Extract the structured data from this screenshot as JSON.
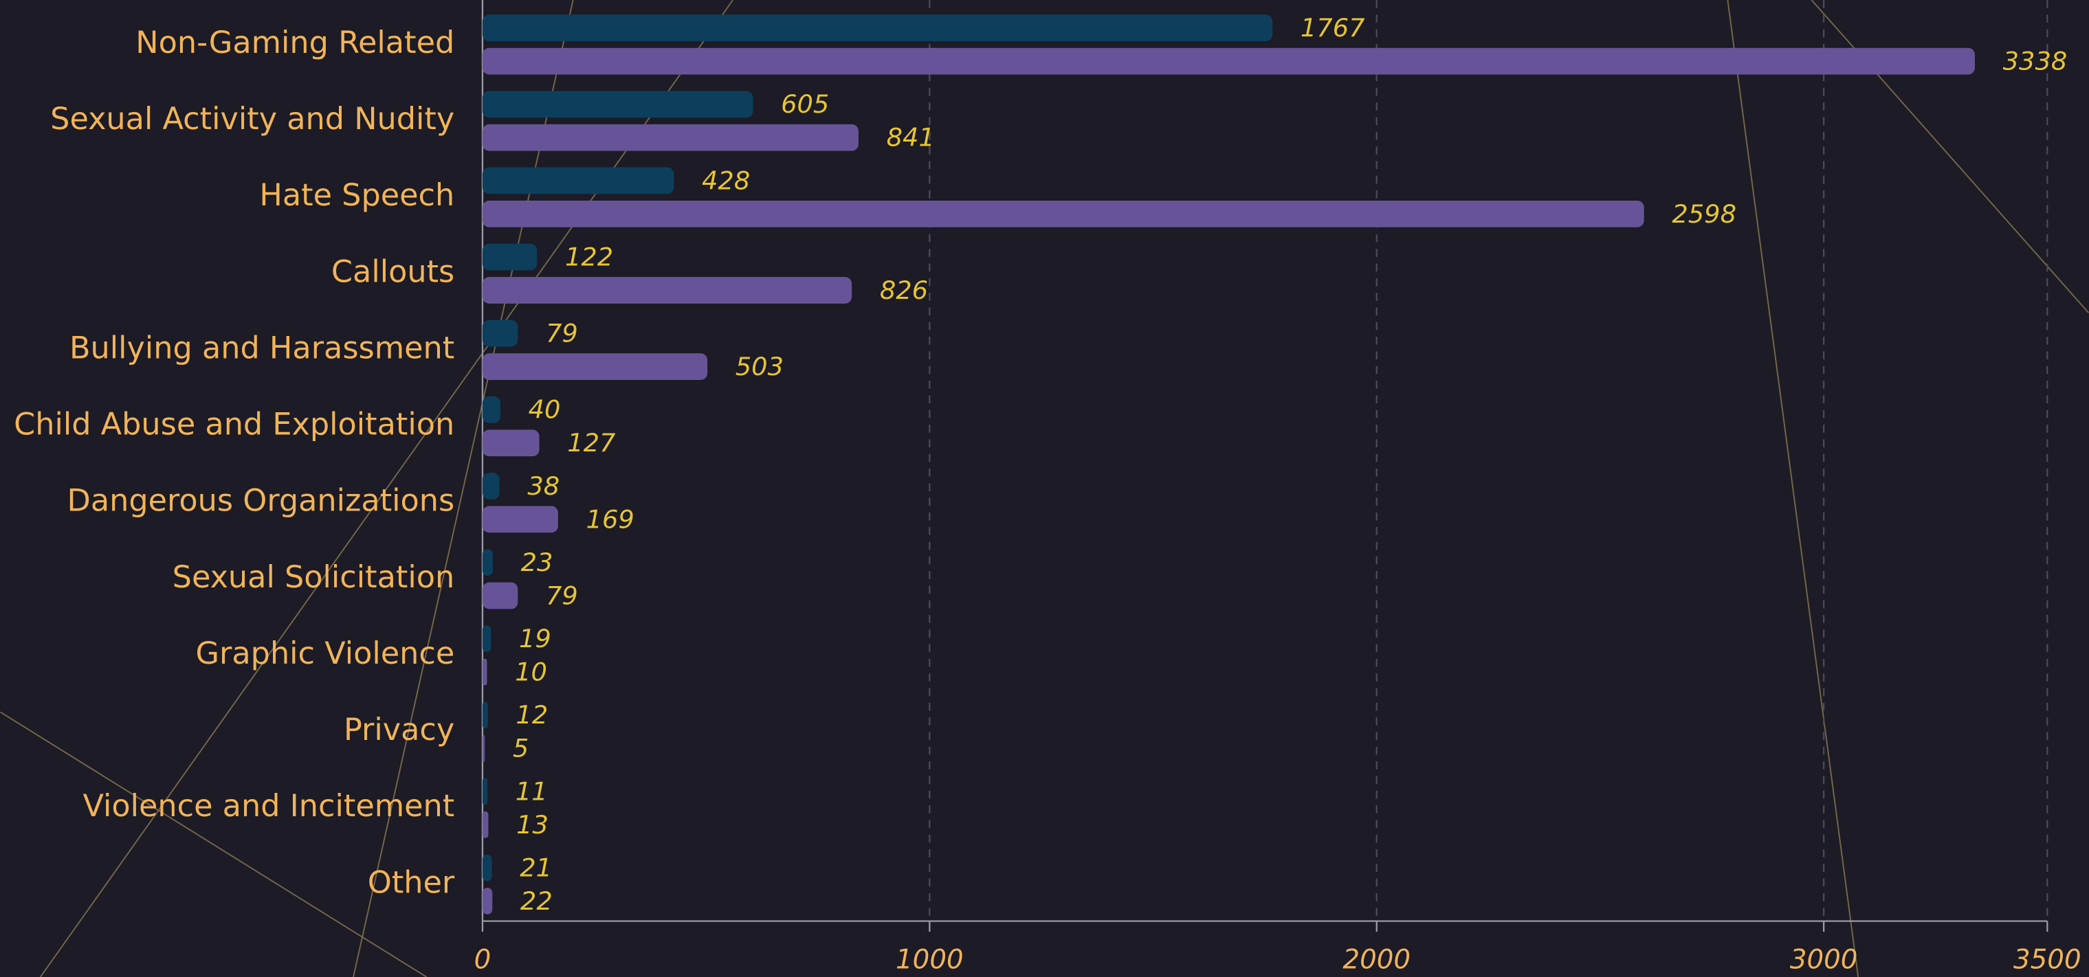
{
  "chart_data": {
    "type": "bar",
    "orientation": "horizontal",
    "categories": [
      "Non-Gaming Related",
      "Sexual Activity and Nudity",
      "Hate Speech",
      "Callouts",
      "Bullying and Harassment",
      "Child Abuse and Exploitation",
      "Dangerous Organizations",
      "Sexual Solicitation",
      "Graphic Violence",
      "Privacy",
      "Violence and Incitement",
      "Other"
    ],
    "series": [
      {
        "color": "#0d3f5c",
        "values": [
          1767,
          605,
          428,
          122,
          79,
          40,
          38,
          23,
          19,
          12,
          11,
          21
        ]
      },
      {
        "color": "#675498",
        "values": [
          3338,
          841,
          2598,
          826,
          503,
          127,
          169,
          79,
          10,
          5,
          13,
          22
        ]
      }
    ],
    "xlim": [
      0,
      3500
    ],
    "xticks": [
      0,
      1000,
      2000,
      3000,
      3500
    ],
    "grid": true
  }
}
